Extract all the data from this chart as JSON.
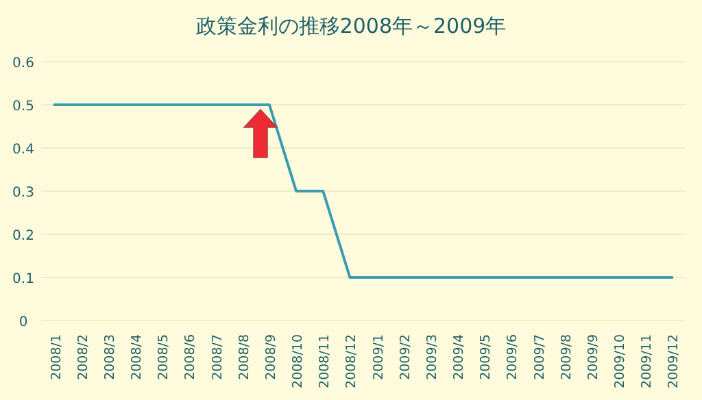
{
  "chart_data": {
    "type": "line",
    "title": "政策金利の推移2008年～2009年",
    "categories": [
      "2008/1",
      "2008/2",
      "2008/3",
      "2008/4",
      "2008/5",
      "2008/6",
      "2008/7",
      "2008/8",
      "2008/9",
      "2008/10",
      "2008/11",
      "2008/12",
      "2009/1",
      "2009/2",
      "2009/3",
      "2009/4",
      "2009/5",
      "2009/6",
      "2009/7",
      "2009/8",
      "2009/9",
      "2009/10",
      "2009/11",
      "2009/12"
    ],
    "series": [
      {
        "color": "#3a9cb0",
        "values": [
          0.5,
          0.5,
          0.5,
          0.5,
          0.5,
          0.5,
          0.5,
          0.5,
          0.5,
          0.3,
          0.3,
          0.1,
          0.1,
          0.1,
          0.1,
          0.1,
          0.1,
          0.1,
          0.1,
          0.1,
          0.1,
          0.1,
          0.1,
          0.1
        ]
      }
    ],
    "ylim": [
      0,
      0.6
    ],
    "yticks": [
      0,
      0.1,
      0.2,
      0.3,
      0.4,
      0.5,
      0.6
    ],
    "grid": "y",
    "marker": "none",
    "line_style": "solid"
  }
}
